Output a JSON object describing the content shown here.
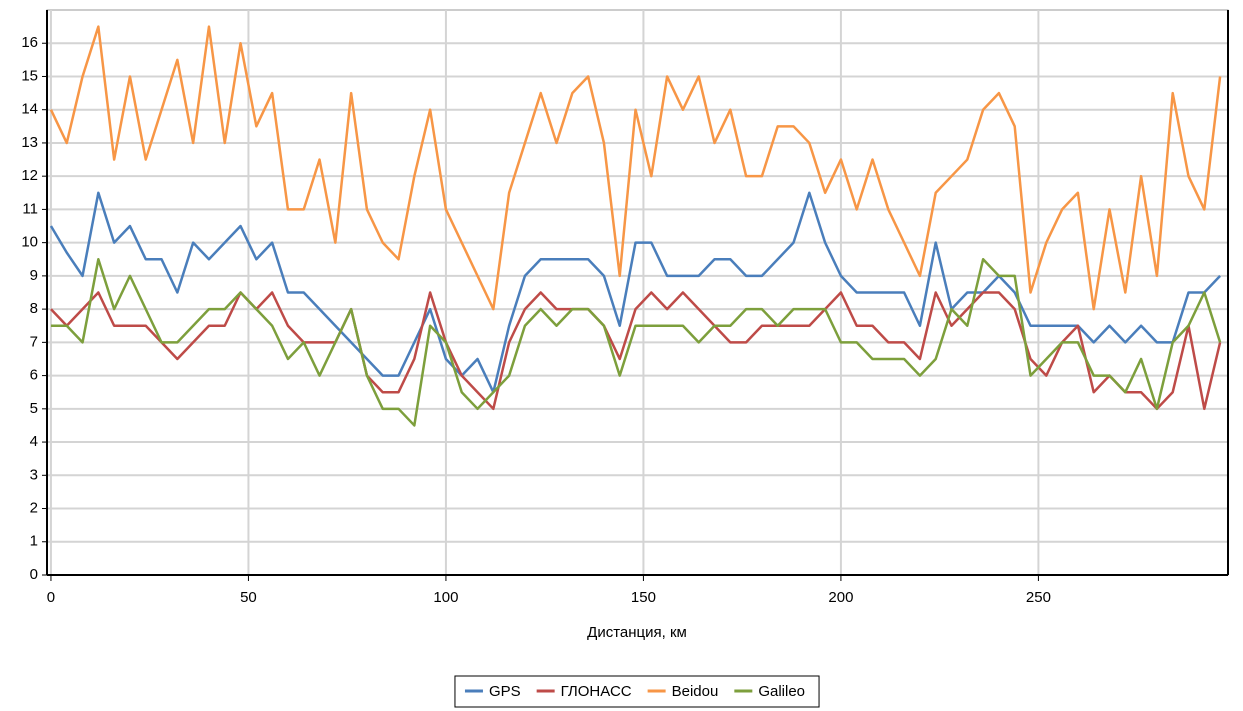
{
  "chart_data": {
    "type": "line",
    "x_label": "Дистанция, км",
    "x": [
      0,
      4,
      8,
      12,
      16,
      20,
      24,
      28,
      32,
      36,
      40,
      44,
      48,
      52,
      56,
      60,
      64,
      68,
      72,
      76,
      80,
      84,
      88,
      92,
      96,
      100,
      104,
      108,
      112,
      116,
      120,
      124,
      128,
      132,
      136,
      140,
      144,
      148,
      152,
      156,
      160,
      164,
      168,
      172,
      176,
      180,
      184,
      188,
      192,
      196,
      200,
      204,
      208,
      212,
      216,
      220,
      224,
      228,
      232,
      236,
      240,
      244,
      248,
      252,
      256,
      260,
      264,
      268,
      272,
      276,
      280,
      284,
      288,
      292,
      296
    ],
    "series": [
      {
        "name": "GPS",
        "color": "#4a7ebb",
        "values": [
          10.5,
          9.7,
          9,
          11.5,
          10,
          10.5,
          9.5,
          9.5,
          8.5,
          10,
          9.5,
          10,
          10.5,
          9.5,
          10,
          8.5,
          8.5,
          8,
          7.5,
          7,
          6.5,
          6,
          6,
          7,
          8,
          6.5,
          6,
          6.5,
          5.5,
          7.5,
          9,
          9.5,
          9.5,
          9.5,
          9.5,
          9,
          7.5,
          10,
          10,
          9,
          9,
          9,
          9.5,
          9.5,
          9,
          9,
          9.5,
          10,
          11.5,
          10,
          9,
          8.5,
          8.5,
          8.5,
          8.5,
          7.5,
          10,
          8,
          8.5,
          8.5,
          9,
          8.5,
          7.5,
          7.5,
          7.5,
          7.5,
          7,
          7.5,
          7,
          7.5,
          7,
          7,
          8.5,
          8.5,
          9
        ]
      },
      {
        "name": "ГЛОНАСС",
        "color": "#be4b48",
        "values": [
          8,
          7.5,
          8,
          8.5,
          7.5,
          7.5,
          7.5,
          7,
          6.5,
          7,
          7.5,
          7.5,
          8.5,
          8,
          8.5,
          7.5,
          7,
          7,
          7,
          8,
          6,
          5.5,
          5.5,
          6.5,
          8.5,
          7,
          6,
          5.5,
          5,
          7,
          8,
          8.5,
          8,
          8,
          8,
          7.5,
          6.5,
          8,
          8.5,
          8,
          8.5,
          8,
          7.5,
          7,
          7,
          7.5,
          7.5,
          7.5,
          7.5,
          8,
          8.5,
          7.5,
          7.5,
          7,
          7,
          6.5,
          8.5,
          7.5,
          8,
          8.5,
          8.5,
          8,
          6.5,
          6,
          7,
          7.5,
          5.5,
          6,
          5.5,
          5.5,
          5,
          5.5,
          7.5,
          5,
          7
        ]
      },
      {
        "name": "Beidou",
        "color": "#f79646",
        "values": [
          14,
          13,
          15,
          16.5,
          12.5,
          15,
          12.5,
          14,
          15.5,
          13,
          16.5,
          13,
          16,
          13.5,
          14.5,
          11,
          11,
          12.5,
          10,
          14.5,
          11,
          10,
          9.5,
          12,
          14,
          11,
          10,
          9,
          8,
          11.5,
          13,
          14.5,
          13,
          14.5,
          15,
          13,
          9,
          14,
          12,
          15,
          14,
          15,
          13,
          14,
          12,
          12,
          13.5,
          13.5,
          13,
          11.5,
          12.5,
          11,
          12.5,
          11,
          10,
          9,
          11.5,
          12,
          12.5,
          14,
          14.5,
          13.5,
          8.5,
          10,
          11,
          11.5,
          8,
          11,
          8.5,
          12,
          9,
          14.5,
          12,
          11,
          15
        ]
      },
      {
        "name": "Galileo",
        "color": "#7d9f3c",
        "values": [
          7.5,
          7.5,
          7,
          9.5,
          8,
          9,
          8,
          7,
          7,
          7.5,
          8,
          8,
          8.5,
          8,
          7.5,
          6.5,
          7,
          6,
          7,
          8,
          6,
          5,
          5,
          4.5,
          7.5,
          7,
          5.5,
          5,
          5.5,
          6,
          7.5,
          8,
          7.5,
          8,
          8,
          7.5,
          6,
          7.5,
          7.5,
          7.5,
          7.5,
          7,
          7.5,
          7.5,
          8,
          8,
          7.5,
          8,
          8,
          8,
          7,
          7,
          6.5,
          6.5,
          6.5,
          6,
          6.5,
          8,
          7.5,
          9.5,
          9,
          9,
          6,
          6.5,
          7,
          7,
          6,
          6,
          5.5,
          6.5,
          5,
          7,
          7.5,
          8.5,
          7
        ]
      }
    ],
    "xlim": [
      -1,
      298
    ],
    "xticks": [
      0,
      50,
      100,
      150,
      200,
      250
    ],
    "ylim": [
      0,
      17
    ],
    "yticks": [
      0,
      1,
      2,
      3,
      4,
      5,
      6,
      7,
      8,
      9,
      10,
      11,
      12,
      13,
      14,
      15,
      16
    ],
    "grid": true,
    "legend": "bottom"
  }
}
